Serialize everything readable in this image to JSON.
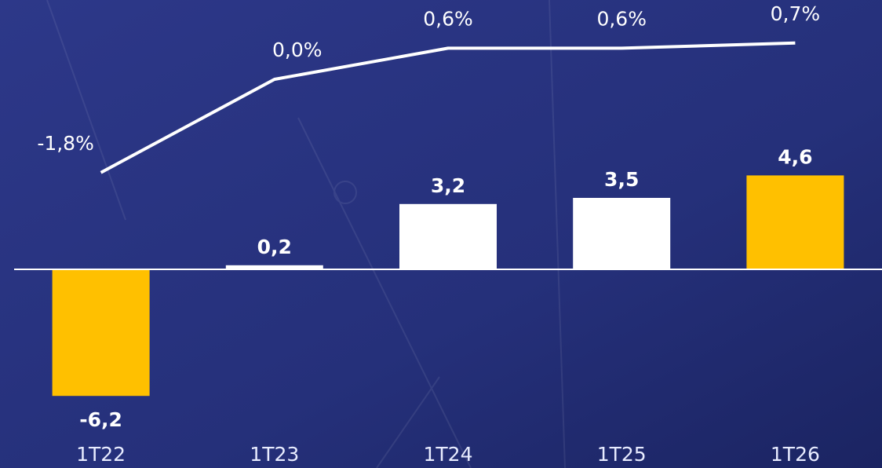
{
  "chart_data": {
    "type": "combo",
    "categories": [
      "1T22",
      "1T23",
      "1T24",
      "1T25",
      "1T26"
    ],
    "series": [
      {
        "type": "bar",
        "values": [
          -6.2,
          0.2,
          3.2,
          3.5,
          4.6
        ],
        "value_labels": [
          "-6,2",
          "0,2",
          "3,2",
          "3,5",
          "4,6"
        ],
        "colors": [
          "#ffc000",
          "#ffffff",
          "#ffffff",
          "#ffffff",
          "#ffc000"
        ]
      },
      {
        "type": "line",
        "axis": "y2",
        "values": [
          -1.8,
          0.0,
          0.6,
          0.6,
          0.7
        ],
        "value_labels": [
          "-1,8%",
          "0,0%",
          "0,6%",
          "0,6%",
          "0,7%"
        ],
        "color": "#ffffff"
      }
    ],
    "ylim": [
      -8,
      5
    ],
    "y2lim": [
      -2.5,
      1.0
    ]
  }
}
